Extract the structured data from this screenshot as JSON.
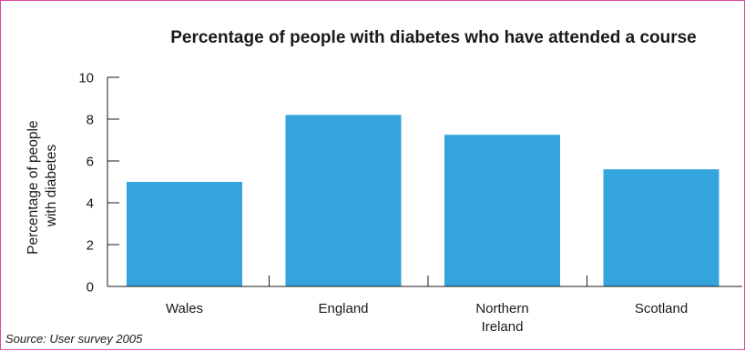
{
  "chart_data": {
    "type": "bar",
    "title": "Percentage of people with diabetes who have attended a course",
    "ylabel": [
      "Percentage of people",
      "with diabetes"
    ],
    "xlabel": "",
    "categories": [
      [
        "Wales"
      ],
      [
        "England"
      ],
      [
        "Northern",
        "Ireland"
      ],
      [
        "Scotland"
      ]
    ],
    "values": [
      5.0,
      8.2,
      7.25,
      5.6
    ],
    "ylim": [
      0,
      10
    ],
    "yticks": [
      "0",
      "2",
      "4",
      "6",
      "8",
      "10"
    ],
    "grid": false,
    "legend": "none",
    "bar_color": "#34a4dc",
    "source": "Source: User survey 2005"
  }
}
